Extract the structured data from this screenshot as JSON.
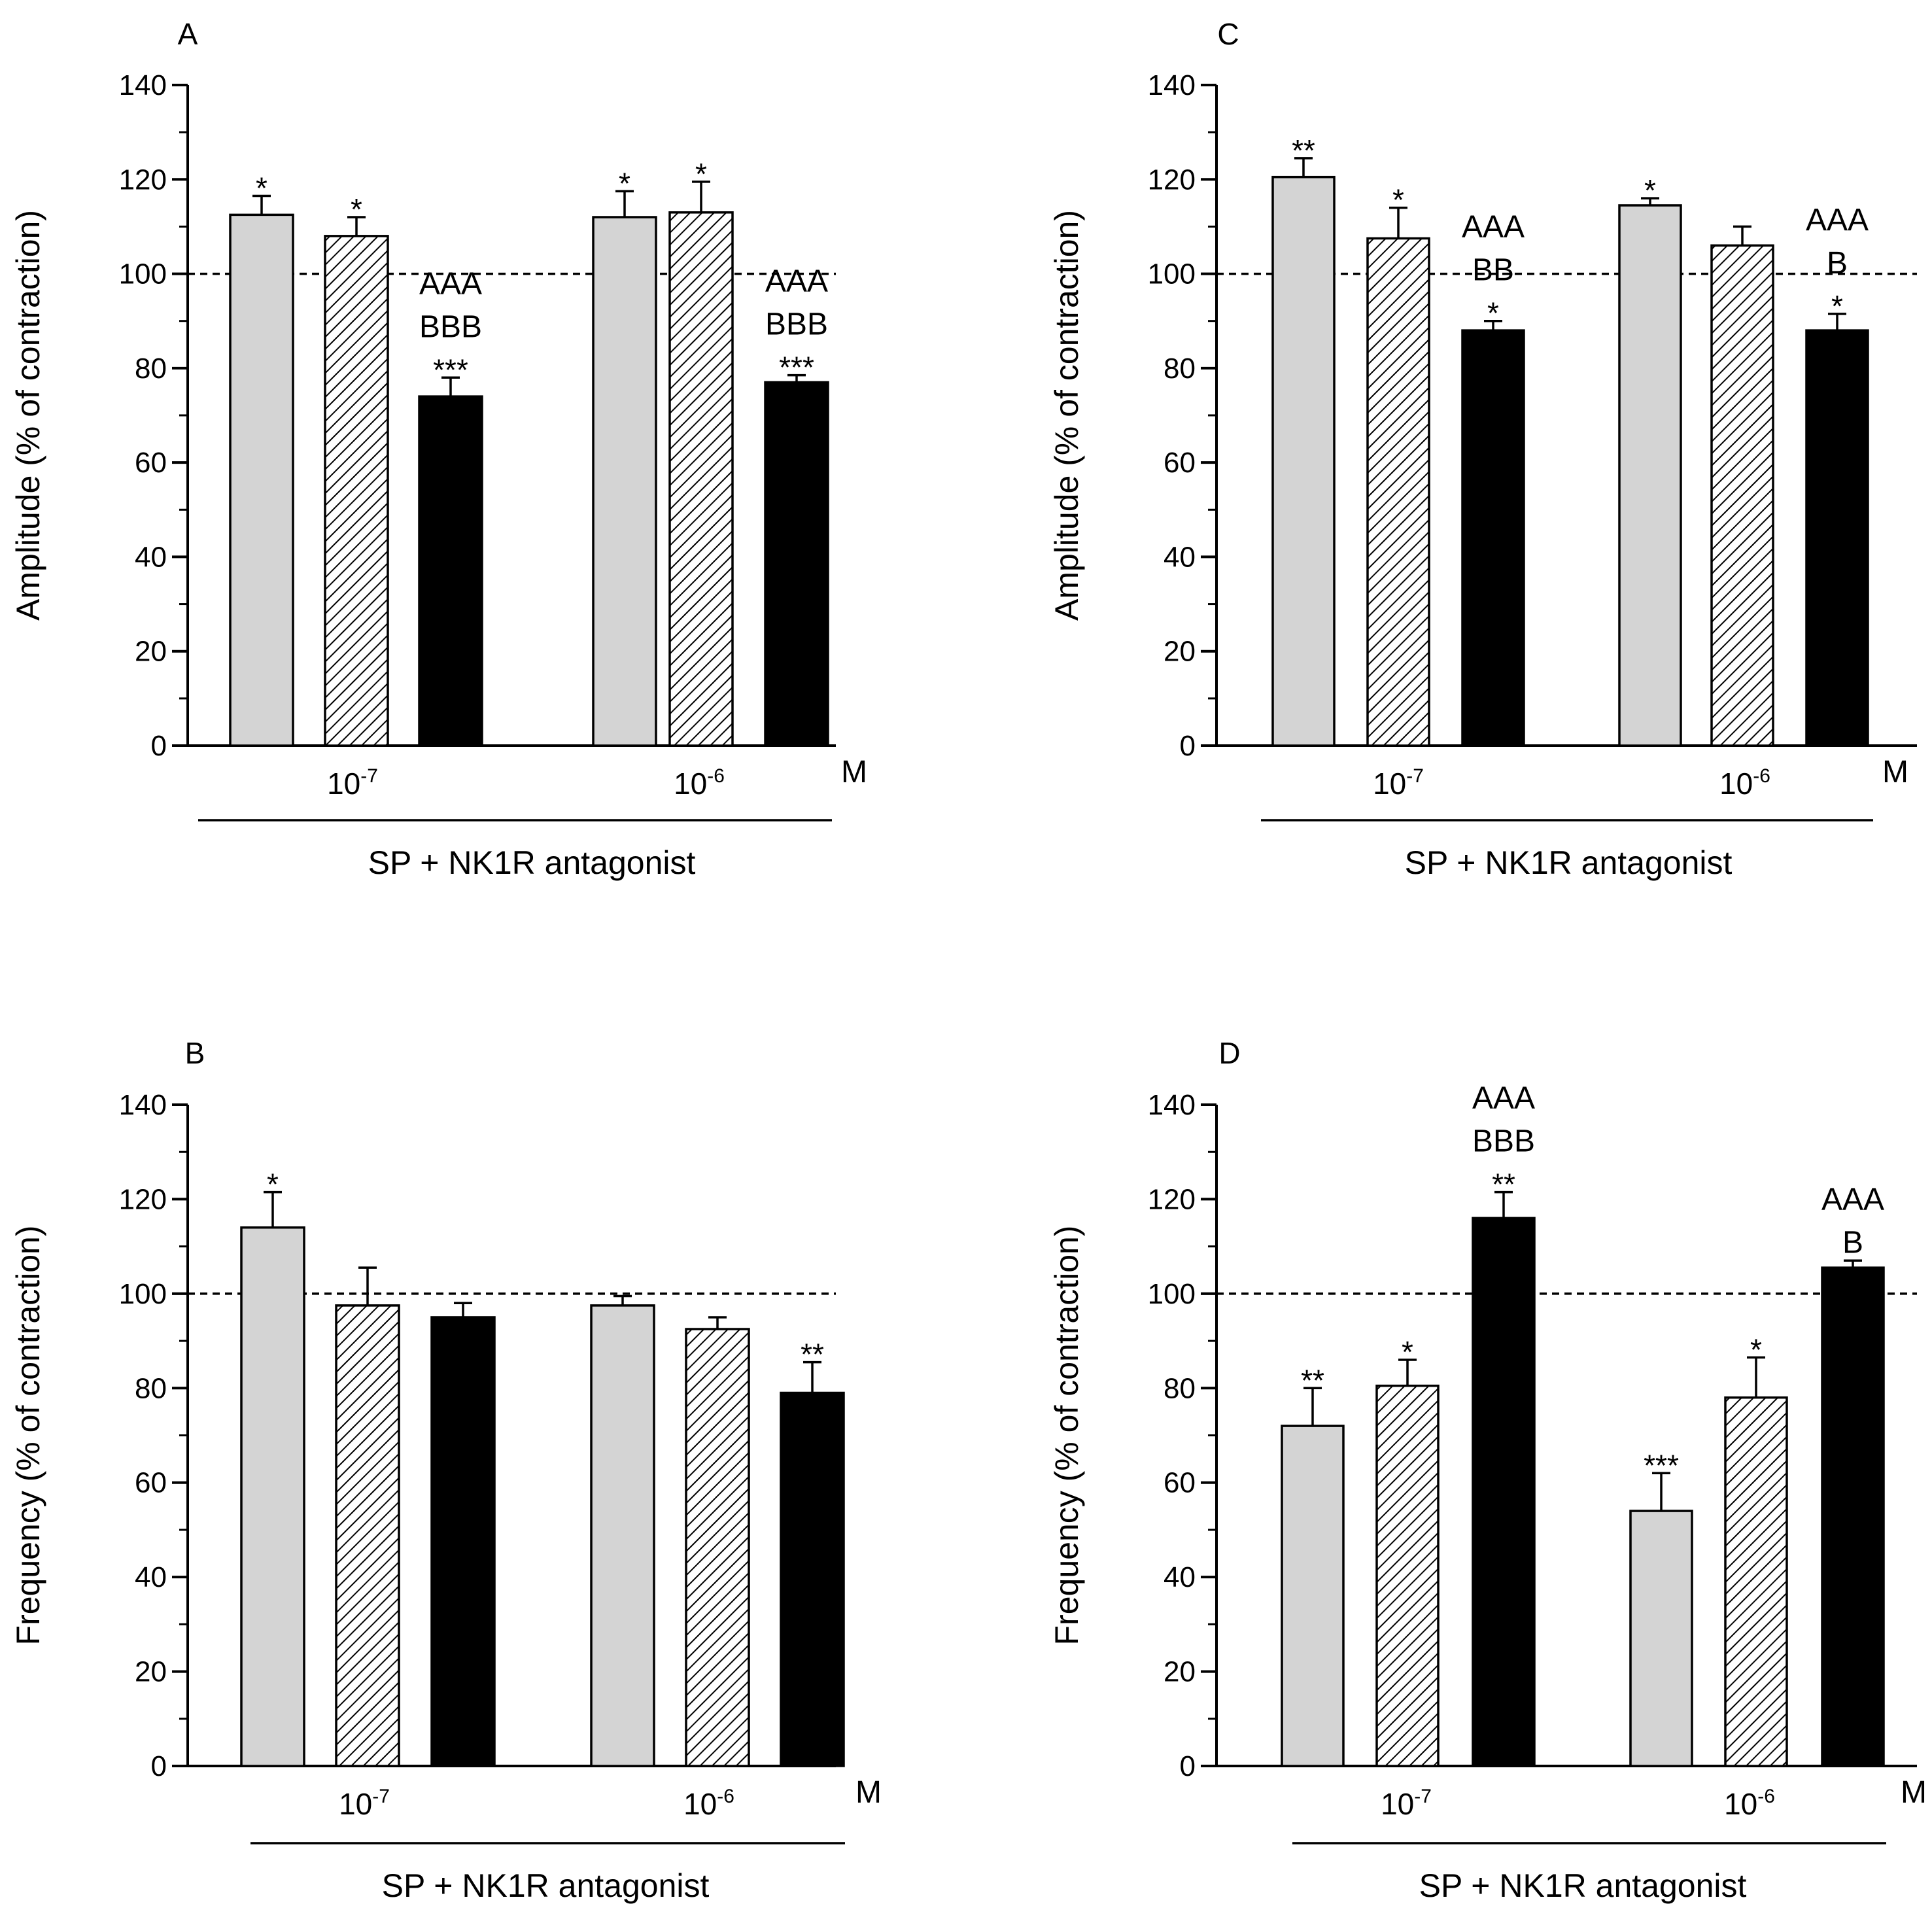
{
  "chart_data": [
    {
      "id": "A",
      "panel_letter": "A",
      "type": "bar",
      "ylabel": "Amplitude (% of contraction)",
      "ylim": [
        0,
        140
      ],
      "yticks": [
        "0",
        "20",
        "40",
        "60",
        "80",
        "100",
        "120",
        "140"
      ],
      "reference_line": 100,
      "groups": [
        {
          "base": "10",
          "exp": "-7"
        },
        {
          "base": "10",
          "exp": "-6"
        }
      ],
      "unit": "M",
      "xtitle": "SP + NK1R antagonist",
      "bars": [
        {
          "group": 0,
          "series": 0,
          "value": 112.5,
          "error": 4,
          "stars": "*",
          "letters": []
        },
        {
          "group": 0,
          "series": 1,
          "value": 108,
          "error": 4,
          "stars": "*",
          "letters": []
        },
        {
          "group": 0,
          "series": 2,
          "value": 74,
          "error": 4,
          "stars": "***",
          "letters": [
            "AAA",
            "BBB"
          ]
        },
        {
          "group": 1,
          "series": 0,
          "value": 112,
          "error": 5.5,
          "stars": "*",
          "letters": []
        },
        {
          "group": 1,
          "series": 1,
          "value": 113,
          "error": 6.5,
          "stars": "*",
          "letters": []
        },
        {
          "group": 1,
          "series": 2,
          "value": 77,
          "error": 1.5,
          "stars": "***",
          "letters": [
            "AAA",
            "BBB"
          ]
        }
      ]
    },
    {
      "id": "B",
      "panel_letter": "B",
      "type": "bar",
      "ylabel": "Frequency (% of contraction)",
      "ylim": [
        0,
        140
      ],
      "yticks": [
        "0",
        "20",
        "40",
        "60",
        "80",
        "100",
        "120",
        "140"
      ],
      "reference_line": 100,
      "groups": [
        {
          "base": "10",
          "exp": "-7"
        },
        {
          "base": "10",
          "exp": "-6"
        }
      ],
      "unit": "M",
      "xtitle": "SP + NK1R antagonist",
      "bars": [
        {
          "group": 0,
          "series": 0,
          "value": 114,
          "error": 7.5,
          "stars": "*",
          "letters": []
        },
        {
          "group": 0,
          "series": 1,
          "value": 97.5,
          "error": 8,
          "stars": "",
          "letters": []
        },
        {
          "group": 0,
          "series": 2,
          "value": 95,
          "error": 3,
          "stars": "",
          "letters": []
        },
        {
          "group": 1,
          "series": 0,
          "value": 97.5,
          "error": 2,
          "stars": "",
          "letters": []
        },
        {
          "group": 1,
          "series": 1,
          "value": 92.5,
          "error": 2.5,
          "stars": "",
          "letters": []
        },
        {
          "group": 1,
          "series": 2,
          "value": 79,
          "error": 6.5,
          "stars": "**",
          "letters": []
        }
      ]
    },
    {
      "id": "C",
      "panel_letter": "C",
      "type": "bar",
      "ylabel": "Amplitude (% of contraction)",
      "ylim": [
        0,
        140
      ],
      "yticks": [
        "0",
        "20",
        "40",
        "60",
        "80",
        "100",
        "120",
        "140"
      ],
      "reference_line": 100,
      "groups": [
        {
          "base": "10",
          "exp": "-7"
        },
        {
          "base": "10",
          "exp": "-6"
        }
      ],
      "unit": "M",
      "xtitle": "SP + NK1R antagonist",
      "bars": [
        {
          "group": 0,
          "series": 0,
          "value": 120.5,
          "error": 4,
          "stars": "**",
          "letters": []
        },
        {
          "group": 0,
          "series": 1,
          "value": 107.5,
          "error": 6.5,
          "stars": "*",
          "letters": []
        },
        {
          "group": 0,
          "series": 2,
          "value": 88,
          "error": 2,
          "stars": "*",
          "letters": [
            "AAA",
            "BB"
          ]
        },
        {
          "group": 1,
          "series": 0,
          "value": 114.5,
          "error": 1.5,
          "stars": "*",
          "letters": []
        },
        {
          "group": 1,
          "series": 1,
          "value": 106,
          "error": 4,
          "stars": "",
          "letters": []
        },
        {
          "group": 1,
          "series": 2,
          "value": 88,
          "error": 3.5,
          "stars": "*",
          "letters": [
            "AAA",
            "B"
          ]
        }
      ]
    },
    {
      "id": "D",
      "panel_letter": "D",
      "type": "bar",
      "ylabel": "Frequency (% of contraction)",
      "ylim": [
        0,
        140
      ],
      "yticks": [
        "0",
        "20",
        "40",
        "60",
        "80",
        "100",
        "120",
        "140"
      ],
      "reference_line": 100,
      "groups": [
        {
          "base": "10",
          "exp": "-7"
        },
        {
          "base": "10",
          "exp": "-6"
        }
      ],
      "unit": "M",
      "xtitle": "SP + NK1R antagonist",
      "bars": [
        {
          "group": 0,
          "series": 0,
          "value": 72,
          "error": 8,
          "stars": "**",
          "letters": []
        },
        {
          "group": 0,
          "series": 1,
          "value": 80.5,
          "error": 5.5,
          "stars": "*",
          "letters": []
        },
        {
          "group": 0,
          "series": 2,
          "value": 116,
          "error": 5.5,
          "stars": "**",
          "letters": [
            "AAA",
            "BBB"
          ]
        },
        {
          "group": 1,
          "series": 0,
          "value": 54,
          "error": 8,
          "stars": "***",
          "letters": []
        },
        {
          "group": 1,
          "series": 1,
          "value": 78,
          "error": 8.5,
          "stars": "*",
          "letters": []
        },
        {
          "group": 1,
          "series": 2,
          "value": 105.5,
          "error": 1.5,
          "stars": "",
          "letters": [
            "AAA",
            "B"
          ]
        }
      ]
    }
  ],
  "series_styles": [
    {
      "name": "light-grey-bar",
      "fill": "#d4d4d4"
    },
    {
      "name": "hatched-bar",
      "fill": "hatch"
    },
    {
      "name": "black-bar",
      "fill": "#000000"
    }
  ]
}
